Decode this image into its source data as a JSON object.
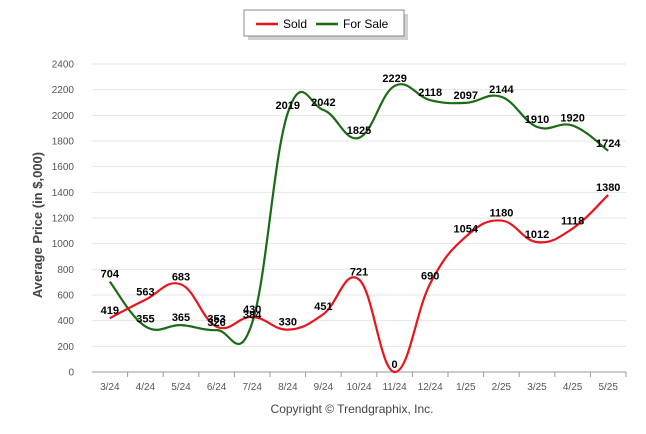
{
  "chart_data": {
    "type": "line",
    "categories": [
      "3/24",
      "4/24",
      "5/24",
      "6/24",
      "7/24",
      "8/24",
      "9/24",
      "10/24",
      "11/24",
      "12/24",
      "1/25",
      "2/25",
      "3/25",
      "4/25",
      "5/25"
    ],
    "series": [
      {
        "name": "Sold",
        "color": "#e8141b",
        "values": [
          419,
          563,
          683,
          353,
          430,
          330,
          451,
          721,
          0,
          690,
          1054,
          1180,
          1012,
          1118,
          1380
        ]
      },
      {
        "name": "For Sale",
        "color": "#1b6b14",
        "values": [
          704,
          355,
          365,
          326,
          384,
          2019,
          2042,
          1825,
          2229,
          2118,
          2097,
          2144,
          1910,
          1920,
          1724
        ]
      }
    ],
    "ylabel": "Average Price (in $,000)",
    "xlabel": "",
    "ylim": [
      0,
      2400
    ],
    "yticks": [
      0,
      200,
      400,
      600,
      800,
      1000,
      1200,
      1400,
      1600,
      1800,
      2000,
      2200,
      2400
    ],
    "grid": true,
    "legend_position": "top-center",
    "credit": "Copyright © Trendgraphix, Inc."
  }
}
